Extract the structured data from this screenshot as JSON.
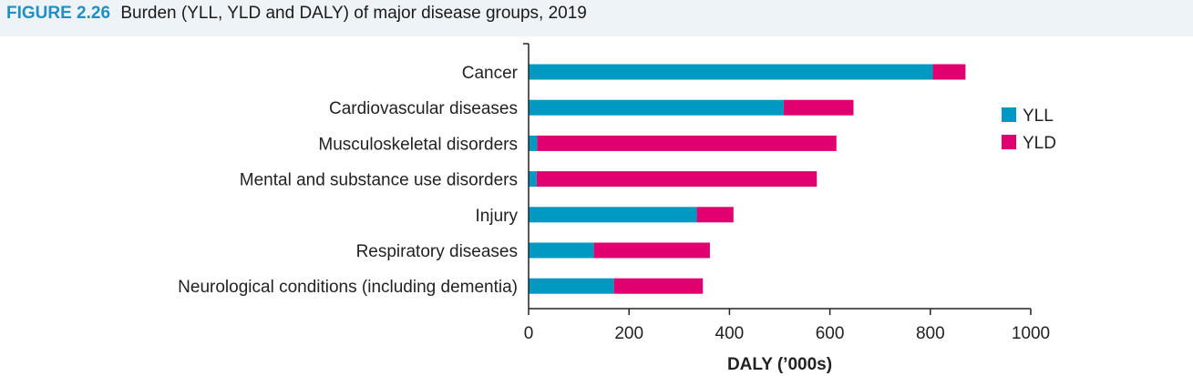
{
  "figure": {
    "number": "FIGURE 2.26",
    "title": "Burden (YLL, YLD and DALY) of major disease groups, 2019"
  },
  "colors": {
    "yll": "#0099c2",
    "yld": "#e0006f",
    "header_bg": "#eef3f8",
    "figure_number": "#1f8fc4"
  },
  "chart_data": {
    "type": "bar",
    "orientation": "horizontal",
    "stacked": true,
    "categories": [
      "Cancer",
      "Cardiovascular diseases",
      "Musculoskeletal disorders",
      "Mental and substance use disorders",
      "Injury",
      "Respiratory diseases",
      "Neurological conditions (including dementia)"
    ],
    "series": [
      {
        "name": "YLL",
        "values": [
          805,
          508,
          17,
          16,
          335,
          130,
          170
        ]
      },
      {
        "name": "YLD",
        "values": [
          65,
          139,
          596,
          558,
          73,
          231,
          177
        ]
      }
    ],
    "xlabel": "DALY (’000s)",
    "ylabel": "",
    "xlim": [
      0,
      1000
    ],
    "xticks": [
      0,
      200,
      400,
      600,
      800,
      1000
    ],
    "grid": false,
    "legend_position": "right"
  }
}
